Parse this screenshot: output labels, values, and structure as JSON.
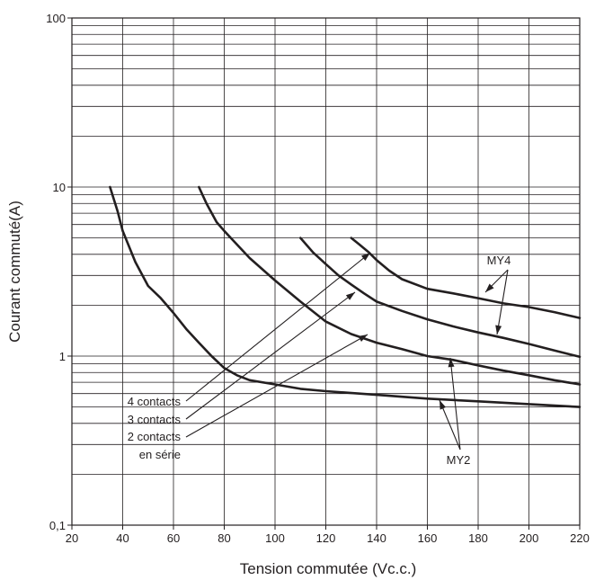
{
  "chart_data": {
    "type": "line",
    "xlabel": "Tension commutée (Vc.c.)",
    "ylabel": "Courant commuté(A)",
    "xlim": [
      20,
      220
    ],
    "ylim": [
      0.1,
      100
    ],
    "y_scale": "log",
    "grid": true,
    "x_ticks": [
      20,
      40,
      60,
      80,
      100,
      120,
      140,
      160,
      180,
      200,
      220
    ],
    "y_ticks": [
      {
        "value": 0.1,
        "label": "0,1"
      },
      {
        "value": 1,
        "label": "1"
      },
      {
        "value": 10,
        "label": "10"
      },
      {
        "value": 100,
        "label": "100"
      }
    ],
    "series": [
      {
        "name": "",
        "x": [
          35,
          38,
          40,
          45,
          50,
          55,
          60,
          65,
          70,
          75,
          80,
          85,
          90,
          100,
          110,
          120,
          140,
          160,
          180,
          200,
          220
        ],
        "y": [
          10,
          7.2,
          5.5,
          3.6,
          2.6,
          2.2,
          1.8,
          1.45,
          1.2,
          1.0,
          0.85,
          0.77,
          0.72,
          0.68,
          0.64,
          0.62,
          0.59,
          0.56,
          0.54,
          0.52,
          0.5
        ]
      },
      {
        "name": "",
        "x": [
          70,
          73,
          77,
          80,
          90,
          100,
          110,
          120,
          130,
          140,
          150,
          160,
          170,
          180,
          190,
          200,
          210,
          220
        ],
        "y": [
          10,
          8.0,
          6.2,
          5.5,
          3.8,
          2.8,
          2.1,
          1.6,
          1.35,
          1.2,
          1.1,
          1.0,
          0.95,
          0.88,
          0.82,
          0.77,
          0.72,
          0.68
        ]
      },
      {
        "name": "",
        "x": [
          110,
          115,
          120,
          125,
          130,
          135,
          140,
          150,
          160,
          170,
          180,
          190,
          200,
          210,
          220
        ],
        "y": [
          5.0,
          4.1,
          3.5,
          3.0,
          2.65,
          2.35,
          2.1,
          1.85,
          1.65,
          1.5,
          1.38,
          1.28,
          1.18,
          1.08,
          0.99
        ]
      },
      {
        "name": "",
        "x": [
          130,
          133,
          137,
          140,
          145,
          150,
          160,
          170,
          180,
          190,
          200,
          210,
          220
        ],
        "y": [
          5.0,
          4.6,
          4.1,
          3.7,
          3.2,
          2.85,
          2.5,
          2.35,
          2.2,
          2.05,
          1.95,
          1.82,
          1.68
        ]
      }
    ],
    "annotations": {
      "series_labels": [
        "4 contacts",
        "3 contacts",
        "2 contacts",
        "en série"
      ],
      "model_labels": [
        "MY4",
        "MY2"
      ]
    }
  }
}
